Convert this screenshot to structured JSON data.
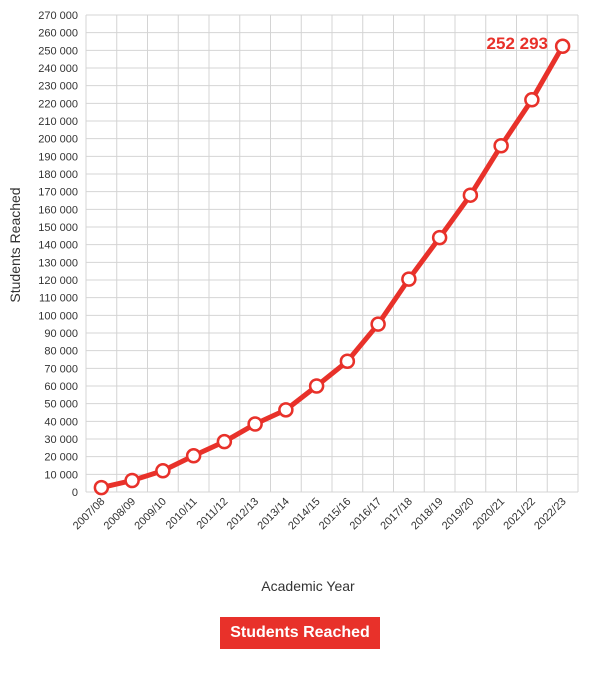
{
  "chart_data": {
    "type": "line",
    "title": "",
    "xlabel": "Academic Year",
    "ylabel": "Students Reached",
    "categories": [
      "2007/08",
      "2008/09",
      "2009/10",
      "2010/11",
      "2011/12",
      "2012/13",
      "2013/14",
      "2014/15",
      "2015/16",
      "2016/17",
      "2017/18",
      "2018/19",
      "2019/20",
      "2020/21",
      "2021/22",
      "2022/23"
    ],
    "series": [
      {
        "name": "Students Reached",
        "values": [
          2500,
          6500,
          12000,
          20500,
          28500,
          38500,
          46500,
          60000,
          74000,
          95000,
          120500,
          144000,
          168000,
          196000,
          222000,
          252293
        ]
      }
    ],
    "ylim": [
      0,
      270000
    ],
    "ytick_step": 10000,
    "yticks": [
      "0",
      "10 000",
      "20 000",
      "30 000",
      "40 000",
      "50 000",
      "60 000",
      "70 000",
      "80 000",
      "90 000",
      "100 000",
      "110 000",
      "120 000",
      "130 000",
      "140 000",
      "150 000",
      "160 000",
      "170 000",
      "180 000",
      "190 000",
      "200 000",
      "210 000",
      "220 000",
      "230 000",
      "240 000",
      "250 000",
      "260 000",
      "270 000"
    ],
    "annotation": "252 293",
    "grid": true,
    "legend_position": "bottom"
  },
  "colors": {
    "line": "#e8312a",
    "marker_fill": "#ffffff",
    "grid": "#d4d4d4",
    "annotation": "#e8312a",
    "legend_bg": "#e8312a"
  }
}
